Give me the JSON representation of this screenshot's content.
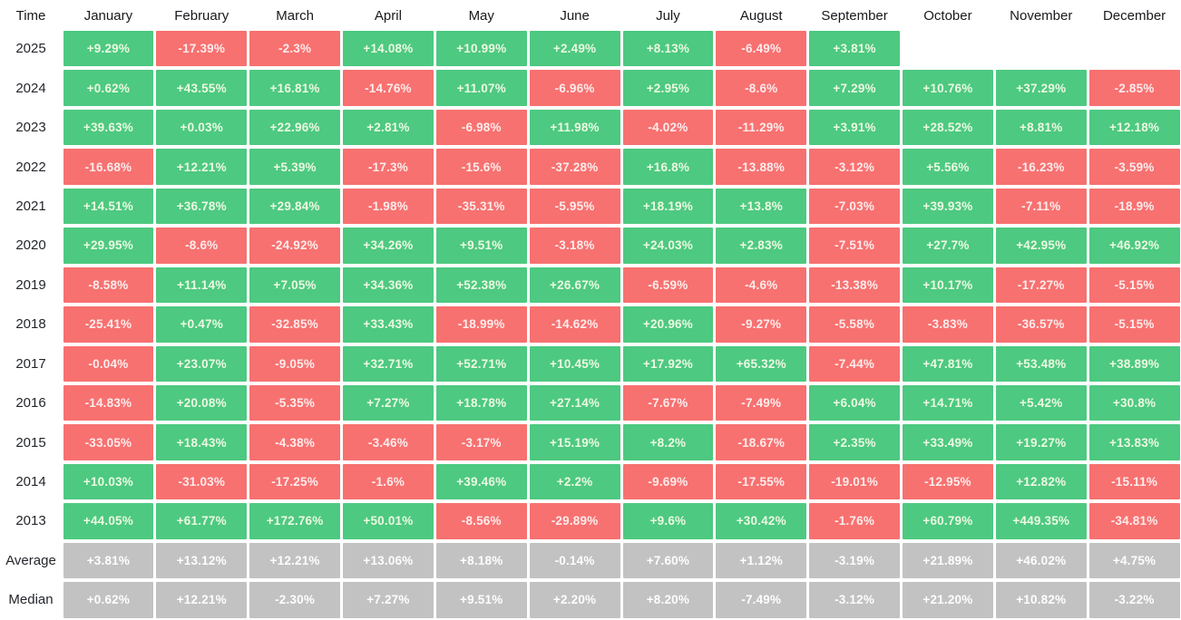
{
  "chart_data": {
    "type": "heatmap",
    "corner_label": "Time",
    "columns": [
      "January",
      "February",
      "March",
      "April",
      "May",
      "June",
      "July",
      "August",
      "September",
      "October",
      "November",
      "December"
    ],
    "rows": [
      {
        "label": "2025",
        "kind": "year",
        "cells": [
          "+9.29%",
          "-17.39%",
          "-2.3%",
          "+14.08%",
          "+10.99%",
          "+2.49%",
          "+8.13%",
          "-6.49%",
          "+3.81%",
          "",
          "",
          ""
        ]
      },
      {
        "label": "2024",
        "kind": "year",
        "cells": [
          "+0.62%",
          "+43.55%",
          "+16.81%",
          "-14.76%",
          "+11.07%",
          "-6.96%",
          "+2.95%",
          "-8.6%",
          "+7.29%",
          "+10.76%",
          "+37.29%",
          "-2.85%"
        ]
      },
      {
        "label": "2023",
        "kind": "year",
        "cells": [
          "+39.63%",
          "+0.03%",
          "+22.96%",
          "+2.81%",
          "-6.98%",
          "+11.98%",
          "-4.02%",
          "-11.29%",
          "+3.91%",
          "+28.52%",
          "+8.81%",
          "+12.18%"
        ]
      },
      {
        "label": "2022",
        "kind": "year",
        "cells": [
          "-16.68%",
          "+12.21%",
          "+5.39%",
          "-17.3%",
          "-15.6%",
          "-37.28%",
          "+16.8%",
          "-13.88%",
          "-3.12%",
          "+5.56%",
          "-16.23%",
          "-3.59%"
        ]
      },
      {
        "label": "2021",
        "kind": "year",
        "cells": [
          "+14.51%",
          "+36.78%",
          "+29.84%",
          "-1.98%",
          "-35.31%",
          "-5.95%",
          "+18.19%",
          "+13.8%",
          "-7.03%",
          "+39.93%",
          "-7.11%",
          "-18.9%"
        ]
      },
      {
        "label": "2020",
        "kind": "year",
        "cells": [
          "+29.95%",
          "-8.6%",
          "-24.92%",
          "+34.26%",
          "+9.51%",
          "-3.18%",
          "+24.03%",
          "+2.83%",
          "-7.51%",
          "+27.7%",
          "+42.95%",
          "+46.92%"
        ]
      },
      {
        "label": "2019",
        "kind": "year",
        "cells": [
          "-8.58%",
          "+11.14%",
          "+7.05%",
          "+34.36%",
          "+52.38%",
          "+26.67%",
          "-6.59%",
          "-4.6%",
          "-13.38%",
          "+10.17%",
          "-17.27%",
          "-5.15%"
        ]
      },
      {
        "label": "2018",
        "kind": "year",
        "cells": [
          "-25.41%",
          "+0.47%",
          "-32.85%",
          "+33.43%",
          "-18.99%",
          "-14.62%",
          "+20.96%",
          "-9.27%",
          "-5.58%",
          "-3.83%",
          "-36.57%",
          "-5.15%"
        ]
      },
      {
        "label": "2017",
        "kind": "year",
        "cells": [
          "-0.04%",
          "+23.07%",
          "-9.05%",
          "+32.71%",
          "+52.71%",
          "+10.45%",
          "+17.92%",
          "+65.32%",
          "-7.44%",
          "+47.81%",
          "+53.48%",
          "+38.89%"
        ]
      },
      {
        "label": "2016",
        "kind": "year",
        "cells": [
          "-14.83%",
          "+20.08%",
          "-5.35%",
          "+7.27%",
          "+18.78%",
          "+27.14%",
          "-7.67%",
          "-7.49%",
          "+6.04%",
          "+14.71%",
          "+5.42%",
          "+30.8%"
        ]
      },
      {
        "label": "2015",
        "kind": "year",
        "cells": [
          "-33.05%",
          "+18.43%",
          "-4.38%",
          "-3.46%",
          "-3.17%",
          "+15.19%",
          "+8.2%",
          "-18.67%",
          "+2.35%",
          "+33.49%",
          "+19.27%",
          "+13.83%"
        ]
      },
      {
        "label": "2014",
        "kind": "year",
        "cells": [
          "+10.03%",
          "-31.03%",
          "-17.25%",
          "-1.6%",
          "+39.46%",
          "+2.2%",
          "-9.69%",
          "-17.55%",
          "-19.01%",
          "-12.95%",
          "+12.82%",
          "-15.11%"
        ]
      },
      {
        "label": "2013",
        "kind": "year",
        "cells": [
          "+44.05%",
          "+61.77%",
          "+172.76%",
          "+50.01%",
          "-8.56%",
          "-29.89%",
          "+9.6%",
          "+30.42%",
          "-1.76%",
          "+60.79%",
          "+449.35%",
          "-34.81%"
        ]
      },
      {
        "label": "Average",
        "kind": "summary",
        "cells": [
          "+3.81%",
          "+13.12%",
          "+12.21%",
          "+13.06%",
          "+8.18%",
          "-0.14%",
          "+7.60%",
          "+1.12%",
          "-3.19%",
          "+21.89%",
          "+46.02%",
          "+4.75%"
        ]
      },
      {
        "label": "Median",
        "kind": "summary",
        "cells": [
          "+0.62%",
          "+12.21%",
          "-2.30%",
          "+7.27%",
          "+9.51%",
          "+2.20%",
          "+8.20%",
          "-7.49%",
          "-3.12%",
          "+21.20%",
          "+10.82%",
          "-3.22%"
        ]
      }
    ],
    "colors": {
      "positive": "#4dc981",
      "negative": "#f77170",
      "summary": "#c2c2c2"
    }
  }
}
